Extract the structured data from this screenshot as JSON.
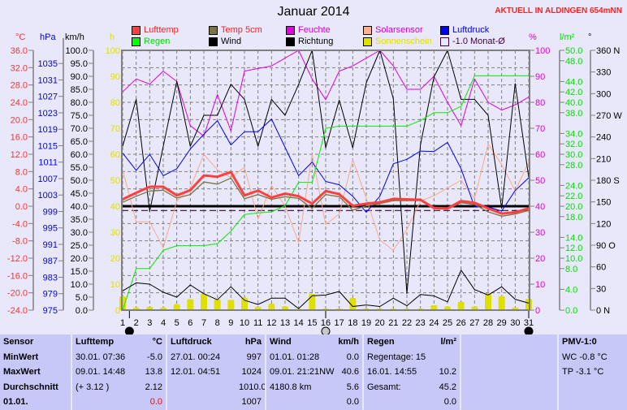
{
  "header": {
    "title": "Januar 2014",
    "current_label": "AKTUELL IN ALDINGEN 654mNN"
  },
  "legend": [
    {
      "label": "Lufttemp",
      "color": "#ff4040",
      "text_color": "#ff2020"
    },
    {
      "label": "Temp 5cm",
      "color": "#7a7440",
      "text_color": "#ff2020"
    },
    {
      "label": "Feuchte",
      "color": "#e000e0",
      "text_color": "#d000d0"
    },
    {
      "label": "Solarsensor",
      "color": "#ffb090",
      "text_color": "#d000d0"
    },
    {
      "label": "Luftdruck",
      "color": "#0000ff",
      "text_color": "#0000ff"
    },
    {
      "label": "Regen",
      "color": "#00ff00",
      "text_color": "#00e000"
    },
    {
      "label": "Wind",
      "color": "#000000",
      "text_color": "#000000"
    },
    {
      "label": "Richtung",
      "color": "#000000",
      "text_color": "#000000"
    },
    {
      "label": "Sonnenschein",
      "color": "#e0e000",
      "text_color": "#e0e000"
    },
    {
      "label": "-1.0 Monat-Ø",
      "color": "none",
      "text_color": "#400040"
    }
  ],
  "chart_data": {
    "type": "line",
    "title": "Januar 2014",
    "x": [
      1,
      2,
      3,
      4,
      5,
      6,
      7,
      8,
      9,
      10,
      11,
      12,
      13,
      14,
      15,
      16,
      17,
      18,
      19,
      20,
      21,
      22,
      23,
      24,
      25,
      26,
      27,
      28,
      29,
      30,
      31
    ],
    "axes": [
      {
        "id": "temp",
        "unit": "°C",
        "range": [
          -24,
          36
        ],
        "ticks": [
          -24,
          -20,
          -16,
          -12,
          -8,
          -4,
          0,
          4,
          8,
          12,
          16,
          20,
          24,
          28,
          32,
          36
        ],
        "color": "#ff3030",
        "decimals": 1
      },
      {
        "id": "hpa",
        "unit": "hPa",
        "range": [
          975,
          1038.2
        ],
        "ticks": [
          975,
          979,
          983,
          987,
          991,
          995,
          999,
          1003,
          1007,
          1011,
          1015,
          1019,
          1023,
          1027,
          1031,
          1035
        ],
        "color": "#0000ff",
        "decimals": 0
      },
      {
        "id": "kmh",
        "unit": "km/h",
        "range": [
          0,
          100
        ],
        "ticks": [
          0,
          5,
          10,
          15,
          20,
          25,
          30,
          35,
          40,
          45,
          50,
          55,
          60,
          65,
          70,
          75,
          80,
          85,
          90,
          95,
          100
        ],
        "color": "#000000",
        "decimals": 1
      },
      {
        "id": "h",
        "unit": "h",
        "range": [
          0,
          100
        ],
        "ticks": [
          0,
          10,
          20,
          30,
          40,
          50,
          60,
          70,
          80,
          90,
          100
        ],
        "color": "#e0e000",
        "decimals": 0
      },
      {
        "id": "pct",
        "unit": "%",
        "range": [
          0,
          100
        ],
        "ticks": [
          0,
          10,
          20,
          30,
          40,
          50,
          60,
          70,
          80,
          90,
          100
        ],
        "color": "#e000e0",
        "decimals": 0
      },
      {
        "id": "rain",
        "unit": "l/m²",
        "range": [
          0,
          50
        ],
        "ticks": [
          0,
          4,
          8,
          10,
          12,
          14,
          18,
          20,
          22,
          24,
          28,
          30,
          32,
          34,
          38,
          40,
          42,
          44,
          48,
          50
        ],
        "color": "#00e000",
        "decimals": 1
      },
      {
        "id": "deg",
        "unit": "°",
        "range": [
          0,
          360
        ],
        "ticks": [
          0,
          30,
          60,
          90,
          120,
          150,
          180,
          210,
          240,
          270,
          300,
          330,
          360
        ],
        "tick_suffix": {
          "0": "N",
          "90": "O",
          "180": "S",
          "270": "W",
          "360": "N"
        },
        "color": "#000000",
        "decimals": 0
      }
    ],
    "series": [
      {
        "name": "Solarsensor",
        "axis": "pct",
        "color": "#ffa888",
        "width": 1,
        "values": [
          54,
          34,
          34,
          24,
          42,
          47,
          60,
          54,
          51,
          55,
          35,
          48,
          40,
          26,
          60,
          33,
          37,
          58,
          43,
          27,
          23,
          31,
          42,
          44,
          47,
          50,
          43,
          64,
          56,
          46,
          57
        ]
      },
      {
        "name": "Feuchte",
        "axis": "pct",
        "color": "#e000e0",
        "width": 1,
        "values": [
          84,
          89,
          87,
          92,
          88,
          71,
          67,
          83,
          69,
          92,
          93,
          94,
          97,
          100,
          89,
          81,
          92,
          94,
          97,
          100,
          94,
          85,
          85,
          90,
          80,
          71,
          89,
          80,
          77,
          79,
          82
        ]
      },
      {
        "name": "Richtung",
        "axis": "deg",
        "color": "#000000",
        "width": 1,
        "values": [
          227,
          292,
          137,
          227,
          317,
          227,
          270,
          270,
          313,
          292,
          227,
          292,
          270,
          313,
          360,
          225,
          291,
          225,
          315,
          360,
          293,
          23,
          229,
          323,
          360,
          292,
          292,
          270,
          141,
          314,
          184
        ]
      },
      {
        "name": "Luftdruck",
        "axis": "hpa",
        "color": "#0000ff",
        "width": 1,
        "values": [
          1013.2,
          1009.0,
          1012.9,
          1007.7,
          1009.4,
          1014.2,
          1017.8,
          1021.1,
          1015.2,
          1018.4,
          1018.4,
          1021.5,
          1014.6,
          1007.7,
          1011.0,
          1006.3,
          1005.5,
          1002.7,
          998.8,
          1002.7,
          1010.6,
          1011.7,
          1013.7,
          1013.6,
          1015.8,
          1009.4,
          1000.1,
          1000.1,
          999.1,
          1004.1,
          1007.2
        ]
      },
      {
        "name": "Regen",
        "axis": "rain",
        "color": "#00ee00",
        "width": 1,
        "values": [
          0,
          8,
          8,
          11.5,
          12.4,
          12.4,
          12.4,
          12.8,
          15.2,
          18.4,
          18.7,
          18.9,
          20.1,
          24.6,
          24.6,
          35,
          35.4,
          35.4,
          35.4,
          35.4,
          35.4,
          35.4,
          36.5,
          38,
          38,
          39.2,
          45.1,
          45.1,
          45.1,
          45.1,
          45.1
        ]
      },
      {
        "name": "Wind",
        "axis": "kmh",
        "color": "#000000",
        "width": 1,
        "values": [
          7.4,
          10.5,
          10,
          6.9,
          5,
          9.7,
          6.3,
          4,
          9,
          3.8,
          2.2,
          4.6,
          4.6,
          0.6,
          5.5,
          5.8,
          7.2,
          1.4,
          2,
          1.4,
          4.6,
          1.7,
          6,
          5.5,
          3.2,
          15.4,
          7.9,
          5.8,
          9,
          4.2,
          2.7
        ]
      },
      {
        "name": "Temp 5cm",
        "axis": "temp",
        "color": "#7a7440",
        "width": 1.3,
        "values": [
          0.9,
          2.3,
          3.5,
          3.7,
          1.9,
          2.7,
          5.6,
          5.1,
          6.5,
          1.7,
          2.7,
          1.6,
          2.2,
          1.8,
          -0.5,
          2.7,
          2.2,
          -0.9,
          0.1,
          0.6,
          1.3,
          1.3,
          1.3,
          -0.6,
          -0.7,
          0.8,
          0.4,
          -1.3,
          -2.3,
          -1.8,
          -1.0
        ]
      },
      {
        "name": "Lufttemp",
        "axis": "temp",
        "color": "#ff4040",
        "width": 3,
        "values": [
          1.6,
          3.1,
          4.5,
          4.5,
          2.5,
          3.7,
          7.1,
          6.8,
          7.9,
          2.5,
          3.6,
          2.0,
          2.9,
          2.3,
          0.6,
          3.5,
          2.8,
          0.1,
          0.6,
          0.9,
          1.7,
          1.6,
          1.5,
          -0.4,
          -0.5,
          1.2,
          0.8,
          -0.5,
          -1.7,
          -1.4,
          -0.5
        ]
      }
    ],
    "bars": {
      "name": "Sonnenschein",
      "axis": "h",
      "color": "#e0e000",
      "values": [
        5.3,
        1,
        1.3,
        1,
        2.3,
        4.2,
        6.3,
        4.2,
        4,
        4.8,
        1.3,
        2.5,
        1.5,
        0.5,
        6.3,
        0.6,
        0.6,
        4.7,
        0.6,
        0.6,
        0.6,
        0.5,
        0.6,
        1.9,
        1.4,
        3.2,
        1.4,
        6.4,
        5.4,
        1,
        4.4
      ]
    },
    "reference_lines": [
      {
        "name": "zero-line",
        "axis": "temp",
        "value": 0,
        "color": "#000000",
        "style": "solid"
      },
      {
        "name": "month-average-line",
        "axis": "temp",
        "value": -1.0,
        "color": "#400040",
        "style": "dashed"
      }
    ],
    "moon_phases": [
      {
        "day": 1.5,
        "phase": "new"
      },
      {
        "day": 16,
        "phase": "full"
      },
      {
        "day": 31,
        "phase": "new"
      }
    ],
    "grid": true
  },
  "stats": {
    "headers": [
      "Sensor",
      "Lufttemp",
      "°C",
      "Luftdruck",
      "hPa",
      "Wind",
      "km/h",
      "Regen",
      "l/m²",
      "",
      "PMV-1:0"
    ],
    "rows": [
      [
        "MinWert",
        "30.01.  07:36",
        "-5.0",
        "27.01.  00:24",
        "997",
        "01.01.  01:28",
        "0.0",
        "Regentage: 15",
        "",
        "",
        "WC -0.8 °C"
      ],
      [
        "MaxWert",
        "09.01.  14:48",
        "13.8",
        "12.01.  04:51",
        "1024",
        "09.01.  21:21NW",
        "40.6",
        "16.01.  14:55",
        "10.2",
        "",
        "TP -3.1 °C"
      ],
      [
        "Durchschnitt",
        "(+ 3.12 )",
        "2.12",
        "",
        "1010.0",
        "4180.8 km",
        "5.6",
        "Gesamt:",
        "45.2",
        "",
        ""
      ],
      [
        "01.01.",
        "",
        "0.0",
        "",
        "1007",
        "",
        "0.0",
        "",
        "0.0",
        "",
        ""
      ]
    ]
  }
}
